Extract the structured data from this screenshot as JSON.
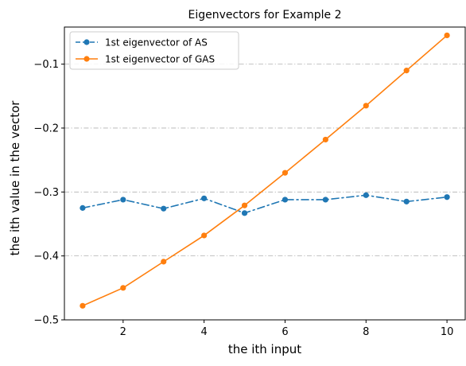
{
  "chart_data": {
    "type": "line",
    "title": "Eigenvectors for Example 2",
    "xlabel": "the ith input",
    "ylabel": "the ith value in the vector",
    "x": [
      1,
      2,
      3,
      4,
      5,
      6,
      7,
      8,
      9,
      10
    ],
    "xlim": [
      0.55,
      10.45
    ],
    "ylim": [
      -0.5,
      -0.042
    ],
    "xticks": [
      2,
      4,
      6,
      8,
      10
    ],
    "yticks": [
      -0.5,
      -0.4,
      -0.3,
      -0.2,
      -0.1
    ],
    "xtick_labels": [
      "2",
      "4",
      "6",
      "8",
      "10"
    ],
    "ytick_labels": [
      "−0.5",
      "−0.4",
      "−0.3",
      "−0.2",
      "−0.1"
    ],
    "grid": "horizontal dash-dot at y ticks",
    "legend_position": "top-left",
    "series": [
      {
        "name": "1st eigenvector of AS",
        "color": "#1f77b4",
        "line_style": "dash-dot",
        "marker": "circle",
        "values": [
          -0.325,
          -0.312,
          -0.326,
          -0.31,
          -0.333,
          -0.312,
          -0.312,
          -0.305,
          -0.315,
          -0.308
        ]
      },
      {
        "name": "1st eigenvector of GAS",
        "color": "#ff7f0e",
        "line_style": "solid",
        "marker": "circle",
        "values": [
          -0.478,
          -0.45,
          -0.409,
          -0.368,
          -0.321,
          -0.27,
          -0.218,
          -0.165,
          -0.11,
          -0.055
        ]
      }
    ]
  }
}
